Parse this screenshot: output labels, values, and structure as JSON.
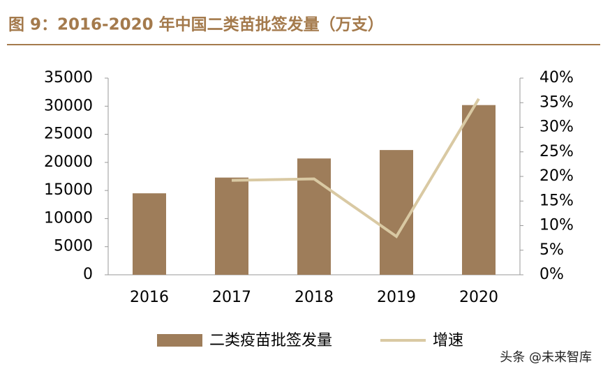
{
  "chart_data": {
    "type": "bar_line",
    "title": "图 9：2016-2020 年中国二类苗批签发量（万支）",
    "categories": [
      "2016",
      "2017",
      "2018",
      "2019",
      "2020"
    ],
    "series": [
      {
        "name": "二类疫苗批签发量",
        "color": "#9e7d5a",
        "type": "bar",
        "values": [
          14500,
          17300,
          20700,
          22200,
          30200
        ]
      },
      {
        "name": "增速",
        "color": "#d9c9a3",
        "type": "line",
        "axis": "y2",
        "values": [
          null,
          19.2,
          19.5,
          7.8,
          35.8
        ]
      }
    ],
    "ylim": [
      0,
      35000
    ],
    "yticks": [
      0,
      5000,
      10000,
      15000,
      20000,
      25000,
      30000,
      35000
    ],
    "y2lim": [
      0,
      40
    ],
    "y2ticks": [
      {
        "value": 0,
        "label": "0%"
      },
      {
        "value": 5,
        "label": "5%"
      },
      {
        "value": 10,
        "label": "10%"
      },
      {
        "value": 15,
        "label": "15%"
      },
      {
        "value": 20,
        "label": "20%"
      },
      {
        "value": 25,
        "label": "25%"
      },
      {
        "value": 30,
        "label": "30%"
      },
      {
        "value": 35,
        "label": "35%"
      },
      {
        "value": 40,
        "label": "40%"
      }
    ],
    "watermark": "头条 @未来智库"
  }
}
